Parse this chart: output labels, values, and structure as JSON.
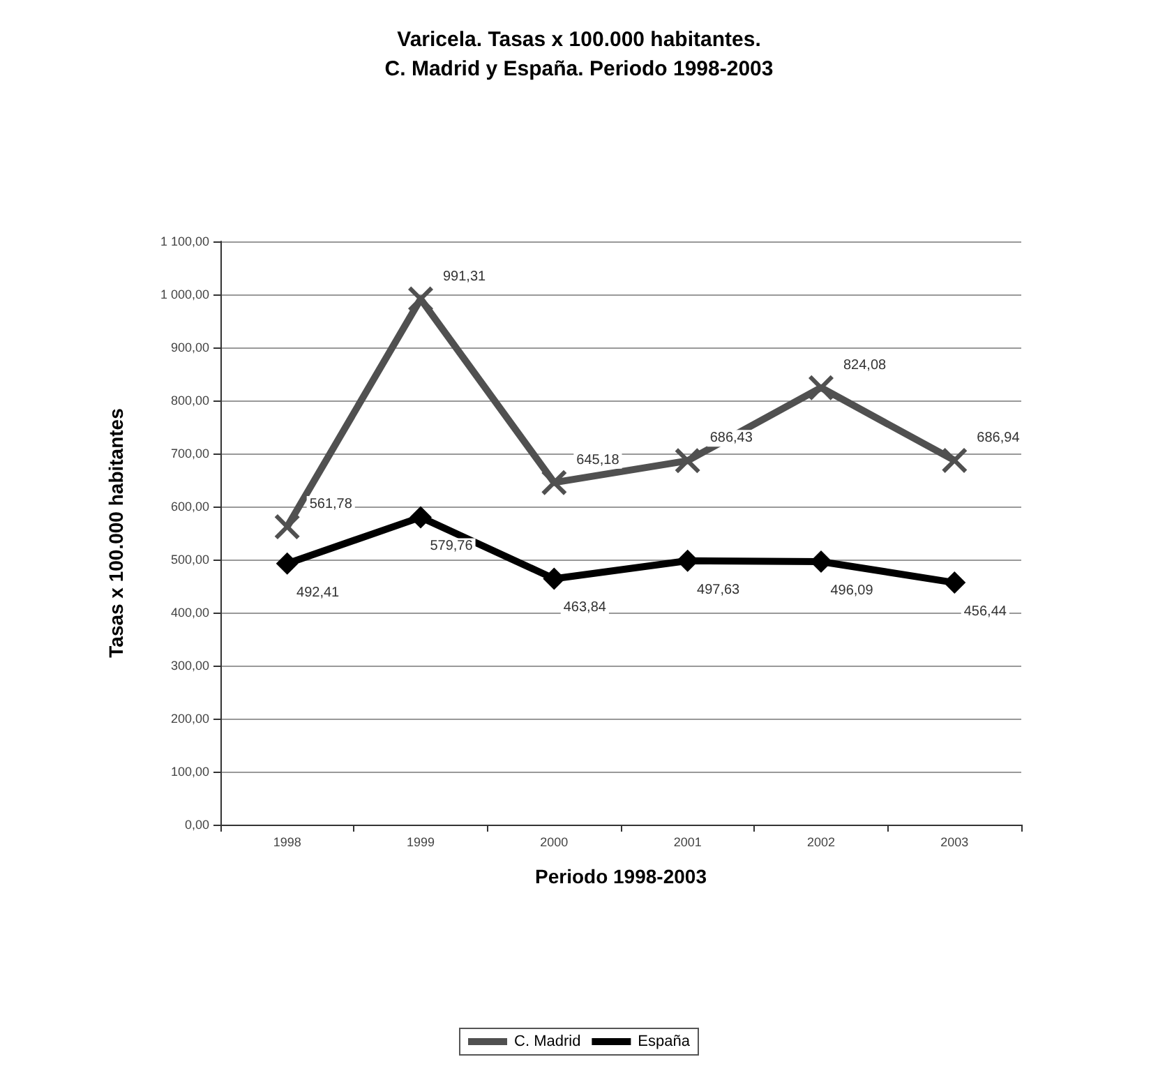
{
  "chart_data": {
    "type": "line",
    "title": "Varicela. Tasas x 100.000 habitantes.",
    "subtitle": "C. Madrid y España. Periodo 1998-2003",
    "xlabel": "Periodo 1998-2003",
    "ylabel": "Tasas x 100.000 habitantes",
    "categories": [
      "1998",
      "1999",
      "2000",
      "2001",
      "2002",
      "2003"
    ],
    "series": [
      {
        "name": "C. Madrid",
        "color": "#505050",
        "marker": "cross",
        "values": [
          561.78,
          991.31,
          645.18,
          686.43,
          824.08,
          686.94
        ],
        "value_labels": [
          "561,78",
          "991,31",
          "645,18",
          "686,43",
          "824,08",
          "686,94"
        ]
      },
      {
        "name": "España",
        "color": "#000000",
        "marker": "diamond",
        "values": [
          492.41,
          579.76,
          463.84,
          497.63,
          496.09,
          456.44
        ],
        "value_labels": [
          "492,41",
          "579,76",
          "463,84",
          "497,63",
          "496,09",
          "456,44"
        ]
      }
    ],
    "ylim": [
      0,
      1100
    ],
    "yticks": [
      {
        "value": 0,
        "label": "0,00"
      },
      {
        "value": 100,
        "label": "100,00"
      },
      {
        "value": 200,
        "label": "200,00"
      },
      {
        "value": 300,
        "label": "300,00"
      },
      {
        "value": 400,
        "label": "400,00"
      },
      {
        "value": 500,
        "label": "500,00"
      },
      {
        "value": 600,
        "label": "600,00"
      },
      {
        "value": 700,
        "label": "700,00"
      },
      {
        "value": 800,
        "label": "800,00"
      },
      {
        "value": 900,
        "label": "900,00"
      },
      {
        "value": 1000,
        "label": "1 000,00"
      },
      {
        "value": 1100,
        "label": "1 100,00"
      }
    ],
    "grid": "y",
    "legend": "bottom"
  }
}
